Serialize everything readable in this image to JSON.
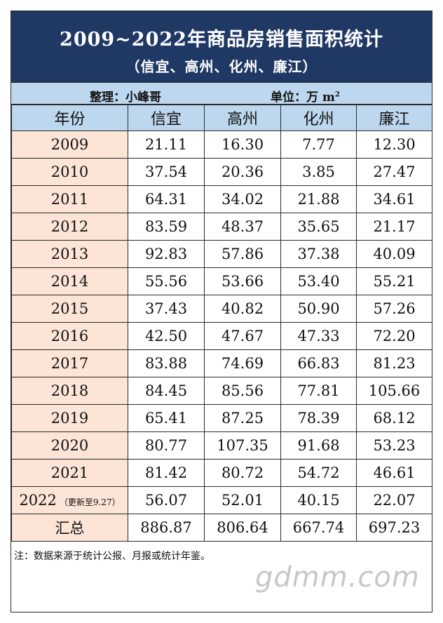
{
  "title": "2009~2022年商品房销售面积统计",
  "subtitle": "（信宜、高州、化州、廉江）",
  "compiler": "整理：小峰哥",
  "unit_label": "单位：万",
  "unit_symbol": "m",
  "unit_sup": "2",
  "headers": [
    "年份",
    "信宜",
    "高州",
    "化州",
    "廉江"
  ],
  "rows": [
    {
      "year": "2009",
      "note": "",
      "values": [
        "21.11",
        "16.30",
        "7.77",
        "12.30"
      ]
    },
    {
      "year": "2010",
      "note": "",
      "values": [
        "37.54",
        "20.36",
        "3.85",
        "27.47"
      ]
    },
    {
      "year": "2011",
      "note": "",
      "values": [
        "64.31",
        "34.02",
        "21.88",
        "34.61"
      ]
    },
    {
      "year": "2012",
      "note": "",
      "values": [
        "83.59",
        "48.37",
        "35.65",
        "21.17"
      ]
    },
    {
      "year": "2013",
      "note": "",
      "values": [
        "92.83",
        "57.86",
        "37.38",
        "40.09"
      ]
    },
    {
      "year": "2014",
      "note": "",
      "values": [
        "55.56",
        "53.66",
        "53.40",
        "55.21"
      ]
    },
    {
      "year": "2015",
      "note": "",
      "values": [
        "37.43",
        "40.82",
        "50.90",
        "57.26"
      ]
    },
    {
      "year": "2016",
      "note": "",
      "values": [
        "42.50",
        "47.67",
        "47.33",
        "72.20"
      ]
    },
    {
      "year": "2017",
      "note": "",
      "values": [
        "83.88",
        "74.69",
        "66.83",
        "81.23"
      ]
    },
    {
      "year": "2018",
      "note": "",
      "values": [
        "84.45",
        "85.56",
        "77.81",
        "105.66"
      ]
    },
    {
      "year": "2019",
      "note": "",
      "values": [
        "65.41",
        "87.25",
        "78.39",
        "68.12"
      ]
    },
    {
      "year": "2020",
      "note": "",
      "values": [
        "80.77",
        "107.35",
        "91.68",
        "53.23"
      ]
    },
    {
      "year": "2021",
      "note": "",
      "values": [
        "81.42",
        "80.72",
        "54.72",
        "46.61"
      ]
    },
    {
      "year": "2022",
      "note": "（更新至9.27）",
      "values": [
        "56.07",
        "52.01",
        "40.15",
        "22.07"
      ]
    }
  ],
  "total": {
    "label": "汇总",
    "values": [
      "886.87",
      "806.64",
      "667.74",
      "697.23"
    ]
  },
  "footnote": "注：数据来源于统计公报、月报或统计年鉴。",
  "watermark": "gdmm.com",
  "colors": {
    "title_bg": "#1f3864",
    "header_bg": "#bdd7ee",
    "year_bg": "#fce4d6"
  }
}
